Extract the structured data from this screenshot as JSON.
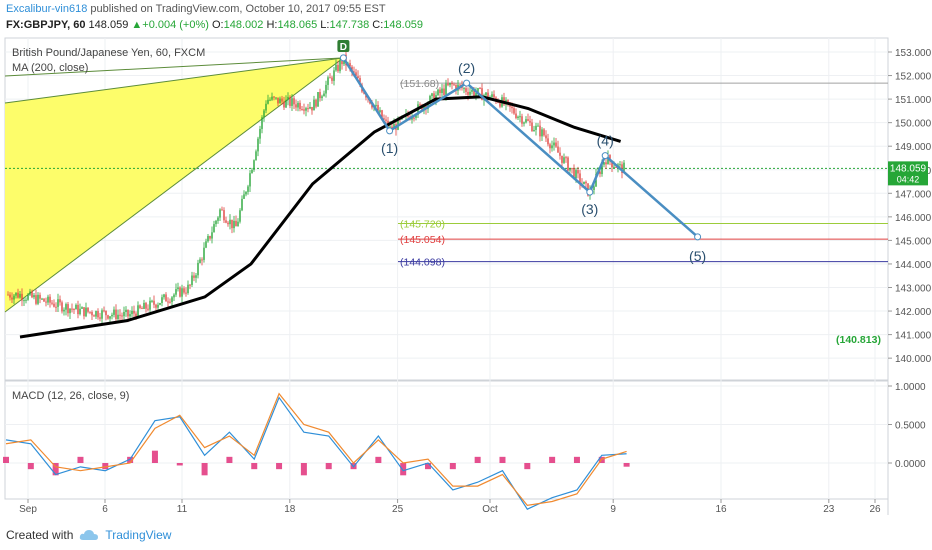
{
  "header": {
    "author": "Excalibur-vin618",
    "published_text": "published on TradingView.com, October 10, 2017 09:55 EST",
    "symbol": "FX:GBPJPY, 60",
    "last": "148.059",
    "change": "+0.004 (+0%)",
    "open_label": "O:",
    "open": "148.002",
    "high_label": "H:",
    "high": "148.065",
    "low_label": "L:",
    "low": "147.738",
    "close_label": "C:",
    "close": "148.059"
  },
  "legend": {
    "instrument": "British Pound/Japanese Yen, 60, FXCM",
    "ma": "MA (200, close)",
    "macd": "MACD (12, 26, close, 9)"
  },
  "footer": {
    "created_with": "Created with",
    "brand": "TradingView"
  },
  "colors": {
    "up": "#26a637",
    "down": "#e0403c",
    "ma": "#000000",
    "wave": "#4a8ec2",
    "pattern_fill": "#fdfd6a",
    "pattern_line": "#5c8c3a",
    "level_145720": "#9ccc3a",
    "level_145054": "#e04040",
    "level_144098": "#3a3aa0",
    "macd_line": "#2f8fd8",
    "signal_line": "#f08a30",
    "hist": "#e0307a"
  },
  "chart_data": [
    {
      "type": "candlestick",
      "title": "British Pound/Japanese Yen, 60, FXCM",
      "ylim": [
        140.0,
        153.5
      ],
      "y_ticks": [
        "153.000",
        "152.000",
        "151.000",
        "150.000",
        "149.000",
        "148.000",
        "147.000",
        "146.000",
        "145.000",
        "144.000",
        "143.000",
        "142.000",
        "141.000",
        "140.000"
      ],
      "x_ticks": [
        "Sep",
        "6",
        "11",
        "18",
        "25",
        "Oct",
        "9",
        "16",
        "23",
        "26"
      ],
      "last_price": "148.059",
      "countdown": "04:42",
      "price_path": [
        {
          "x": "Sep 1",
          "y": 142.7
        },
        {
          "x": "Sep 5",
          "y": 142.0
        },
        {
          "x": "Sep 8",
          "y": 141.8
        },
        {
          "x": "Sep 12",
          "y": 143.0
        },
        {
          "x": "Sep 14",
          "y": 146.3
        },
        {
          "x": "Sep 15",
          "y": 145.5
        },
        {
          "x": "Sep 16",
          "y": 148.0
        },
        {
          "x": "Sep 17",
          "y": 151.0
        },
        {
          "x": "Sep 20",
          "y": 150.7
        },
        {
          "x": "Sep 22",
          "y": 152.7
        },
        {
          "x": "Sep 25",
          "y": 149.7
        },
        {
          "x": "Sep 29",
          "y": 151.6
        },
        {
          "x": "Oct 2",
          "y": 151.0
        },
        {
          "x": "Oct 5",
          "y": 149.5
        },
        {
          "x": "Oct 8",
          "y": 147.0
        },
        {
          "x": "Oct 9",
          "y": 148.5
        },
        {
          "x": "Oct 10",
          "y": 148.06
        }
      ],
      "ma_200": [
        {
          "x": "Sep 1",
          "y": 140.9
        },
        {
          "x": "Sep 8",
          "y": 141.6
        },
        {
          "x": "Sep 13",
          "y": 142.6
        },
        {
          "x": "Sep 16",
          "y": 144.0
        },
        {
          "x": "Sep 20",
          "y": 147.4
        },
        {
          "x": "Sep 24",
          "y": 149.6
        },
        {
          "x": "Sep 28",
          "y": 151.0
        },
        {
          "x": "Oct 1",
          "y": 151.1
        },
        {
          "x": "Oct 4",
          "y": 150.6
        },
        {
          "x": "Oct 7",
          "y": 149.8
        },
        {
          "x": "Oct 10",
          "y": 149.2
        }
      ],
      "wave_points": [
        {
          "label": "D",
          "x": "Sep 22",
          "y": 152.75
        },
        {
          "label": "(1)",
          "x": "Sep 25",
          "y": 149.65
        },
        {
          "label": "(2)",
          "x": "Sep 30",
          "y": 151.68
        },
        {
          "label": "(3)",
          "x": "Oct 8",
          "y": 147.05
        },
        {
          "label": "(4)",
          "x": "Oct 9",
          "y": 148.6
        },
        {
          "label": "(5)",
          "x": "Oct 15",
          "y": 145.15
        }
      ],
      "annotations": [
        {
          "text": "(151.68)",
          "y": 151.68
        },
        {
          "text": "(145.720)",
          "y": 145.72
        },
        {
          "text": "(145.054)",
          "y": 145.054
        },
        {
          "text": "(144.098)",
          "y": 144.098
        },
        {
          "text": "(140.813)",
          "y": 140.813
        }
      ]
    },
    {
      "type": "line",
      "title": "MACD (12, 26, close, 9)",
      "ylim": [
        -0.8,
        1.1
      ],
      "y_ticks": [
        "1.0000",
        "0.5000",
        "0.0000"
      ],
      "series": [
        {
          "values": [
            0.3,
            0.25,
            -0.15,
            -0.05,
            -0.1,
            0.05,
            0.55,
            0.6,
            0.1,
            0.4,
            0.05,
            0.85,
            0.4,
            0.35,
            -0.05,
            0.35,
            -0.1,
            0.0,
            -0.35,
            -0.25,
            -0.1,
            -0.6,
            -0.45,
            -0.35,
            0.1,
            0.12
          ]
        },
        {
          "values": [
            0.25,
            0.3,
            -0.05,
            -0.1,
            -0.05,
            0.0,
            0.45,
            0.62,
            0.2,
            0.35,
            0.1,
            0.9,
            0.5,
            0.4,
            0.0,
            0.3,
            0.0,
            0.05,
            -0.3,
            -0.3,
            -0.15,
            -0.55,
            -0.5,
            -0.4,
            0.05,
            0.15
          ]
        }
      ]
    }
  ]
}
